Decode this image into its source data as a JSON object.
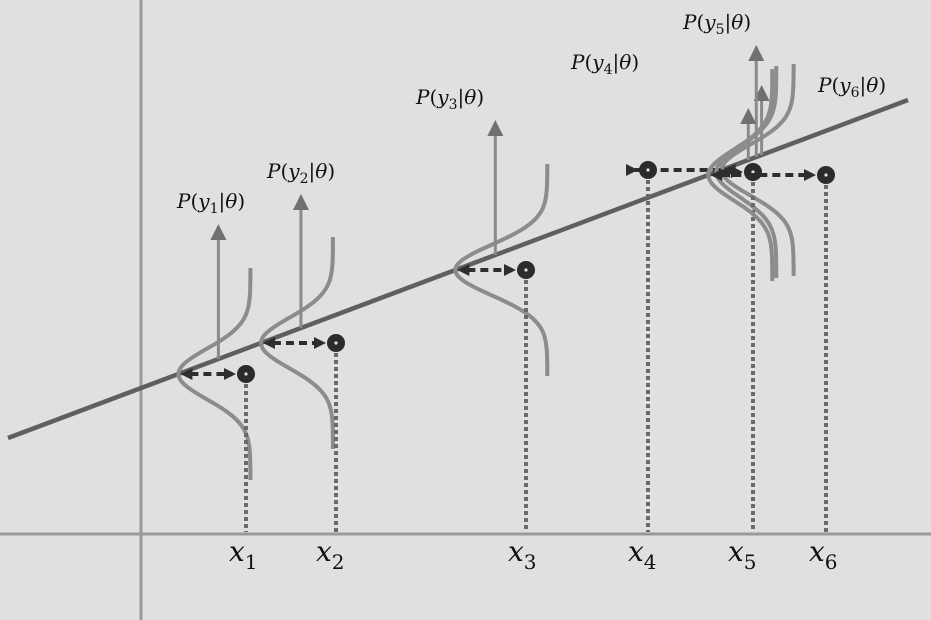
{
  "diagram": {
    "title": "",
    "colors": {
      "background": "#e0e0e0",
      "axis": "#9a9a9a",
      "regression_line": "#5f5f5f",
      "gaussian_curve": "#8c8c8c",
      "arrow_up": "#8a8a8a",
      "arrowhead": "#707070",
      "residual_arrow": "#2e2e2e",
      "dotted_drop": "#6a6a6a",
      "point": "#2b2b2b",
      "point_center": "#e0e0e0"
    },
    "points": [
      {
        "id": "1",
        "x_label": "x",
        "x_sub": "1",
        "prob_func": "P",
        "prob_var": "y",
        "prob_sub": "1",
        "prob_given": "θ"
      },
      {
        "id": "2",
        "x_label": "x",
        "x_sub": "2",
        "prob_func": "P",
        "prob_var": "y",
        "prob_sub": "2",
        "prob_given": "θ"
      },
      {
        "id": "3",
        "x_label": "x",
        "x_sub": "3",
        "prob_func": "P",
        "prob_var": "y",
        "prob_sub": "3",
        "prob_given": "θ"
      },
      {
        "id": "4",
        "x_label": "x",
        "x_sub": "4",
        "prob_func": "P",
        "prob_var": "y",
        "prob_sub": "4",
        "prob_given": "θ"
      },
      {
        "id": "5",
        "x_label": "x",
        "x_sub": "5",
        "prob_func": "P",
        "prob_var": "y",
        "prob_sub": "5",
        "prob_given": "θ"
      },
      {
        "id": "6",
        "x_label": "x",
        "x_sub": "6",
        "prob_func": "P",
        "prob_var": "y",
        "prob_sub": "6",
        "prob_given": "θ"
      }
    ]
  }
}
